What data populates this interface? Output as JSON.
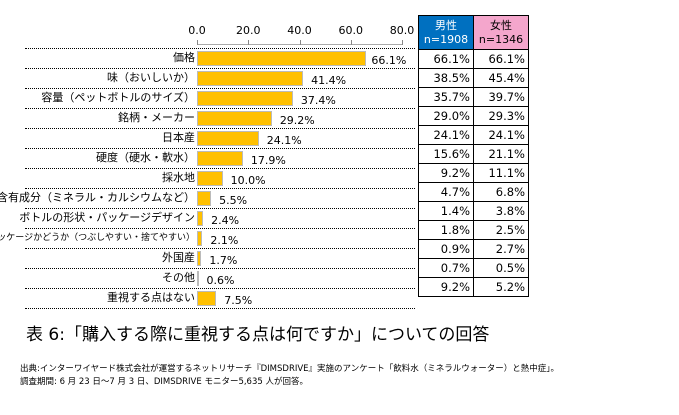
{
  "chart_data": {
    "type": "bar",
    "title": "表 6:「購入する際に重視する点は何ですか」についての回答",
    "xlim": [
      0,
      80
    ],
    "ticks": [
      "0.0",
      "20.0",
      "40.0",
      "60.0",
      "80.0"
    ],
    "categories": [
      "価格",
      "味（おいしいか）",
      "容量（ペットボトルのサイズ）",
      "銘柄・メーカー",
      "日本産",
      "硬度（硬水・軟水）",
      "採水地",
      "含有成分（ミネラル・カルシウムなど）",
      "ボトルの形状・パッケージデザイン",
      "エコパッケージかどうか（つぶしやすい・捨てやすい）",
      "外国産",
      "その他",
      "重視する点はない"
    ],
    "values": [
      66.1,
      41.4,
      37.4,
      29.2,
      24.1,
      17.9,
      10.0,
      5.5,
      2.4,
      2.1,
      1.7,
      0.6,
      7.5
    ],
    "value_labels": [
      "66.1%",
      "41.4%",
      "37.4%",
      "29.2%",
      "24.1%",
      "17.9%",
      "10.0%",
      "5.5%",
      "2.4%",
      "2.1%",
      "1.7%",
      "0.6%",
      "7.5%"
    ],
    "bar_color": "#FFC000",
    "table": {
      "headers": [
        {
          "label": "男性",
          "n": "n=1908",
          "color": "#0070C0"
        },
        {
          "label": "女性",
          "n": "n=1346",
          "color": "#F4A6CC"
        }
      ],
      "male": [
        "66.1%",
        "38.5%",
        "35.7%",
        "29.0%",
        "24.1%",
        "15.6%",
        "9.2%",
        "4.7%",
        "1.4%",
        "1.8%",
        "0.9%",
        "0.7%",
        "9.2%"
      ],
      "female": [
        "66.1%",
        "45.4%",
        "39.7%",
        "29.3%",
        "24.1%",
        "21.1%",
        "11.1%",
        "6.8%",
        "3.8%",
        "2.5%",
        "2.7%",
        "0.5%",
        "5.2%"
      ]
    }
  },
  "notes": [
    "出典:インターワイヤード株式会社が運営するネットリサーチ『DIMSDRIVE』実施のアンケート「飲料水（ミネラルウォーター）と熱中症」。",
    "調査期間: 6 月 23 日〜7 月 3 日、DIMSDRIVE モニター5,635 人が回答。"
  ]
}
